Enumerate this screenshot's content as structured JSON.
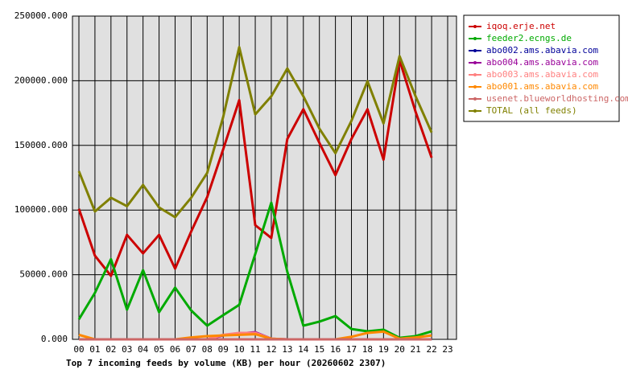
{
  "chart_data": {
    "type": "line",
    "title": "Top 7 incoming feeds by volume (KB) per hour (20260602 2307)",
    "categories": [
      "00",
      "01",
      "02",
      "03",
      "04",
      "05",
      "06",
      "07",
      "08",
      "09",
      "10",
      "11",
      "12",
      "13",
      "14",
      "15",
      "16",
      "17",
      "18",
      "19",
      "20",
      "21",
      "22",
      "23"
    ],
    "ylim": [
      0,
      250000
    ],
    "yticks": [
      {
        "value": 0,
        "label": "0.000"
      },
      {
        "value": 50000,
        "label": "50000.000"
      },
      {
        "value": 100000,
        "label": "100000.000"
      },
      {
        "value": 150000,
        "label": "150000.000"
      },
      {
        "value": 200000,
        "label": "200000.000"
      },
      {
        "value": 250000,
        "label": "250000.000"
      }
    ],
    "grid": true,
    "legend": "right",
    "series": [
      {
        "name": "iqoq.erje.net",
        "color": "#cc0000",
        "values": [
          101000,
          64700,
          49100,
          80800,
          66500,
          80800,
          54700,
          83300,
          110000,
          147000,
          185000,
          88300,
          78400,
          155000,
          178000,
          152000,
          127000,
          155000,
          178000,
          139000,
          216000,
          176000,
          140500,
          null
        ]
      },
      {
        "name": "feeder2.ecngs.de",
        "color": "#00aa00",
        "values": [
          15500,
          36000,
          62000,
          23000,
          53500,
          21000,
          40000,
          22400,
          10600,
          18700,
          26700,
          66000,
          105700,
          52200,
          10600,
          13700,
          18000,
          8000,
          6200,
          7500,
          1200,
          2500,
          6200,
          null
        ]
      },
      {
        "name": "abo002.ams.abavia.com",
        "color": "#000099",
        "values": [
          0,
          0,
          0,
          0,
          0,
          0,
          0,
          0,
          0,
          0,
          0,
          0,
          0,
          0,
          0,
          0,
          0,
          0,
          0,
          0,
          0,
          0,
          0,
          null
        ]
      },
      {
        "name": "abo004.ams.abavia.com",
        "color": "#990099",
        "values": [
          0,
          0,
          0,
          0,
          0,
          0,
          0,
          0,
          0,
          3000,
          4500,
          5500,
          500,
          0,
          0,
          0,
          0,
          0,
          0,
          0,
          0,
          0,
          0,
          null
        ]
      },
      {
        "name": "abo003.ams.abavia.com",
        "color": "#ff8080",
        "values": [
          0,
          0,
          0,
          0,
          0,
          0,
          0,
          0,
          0,
          3500,
          5000,
          5000,
          500,
          0,
          0,
          0,
          0,
          0,
          0,
          0,
          0,
          0,
          0,
          null
        ]
      },
      {
        "name": "abo001.ams.abavia.com",
        "color": "#ff8800",
        "values": [
          3500,
          0,
          0,
          0,
          0,
          0,
          0,
          1500,
          2500,
          3000,
          3500,
          4000,
          500,
          0,
          0,
          0,
          0,
          2000,
          5000,
          6000,
          500,
          1500,
          3000,
          null
        ]
      },
      {
        "name": "usenet.blueworldhosting.com",
        "color": "#cc6666",
        "values": [
          0,
          0,
          0,
          0,
          0,
          0,
          0,
          0,
          0,
          0,
          0,
          0,
          0,
          0,
          0,
          0,
          0,
          0,
          0,
          0,
          0,
          0,
          0,
          null
        ]
      },
      {
        "name": "TOTAL (all feeds)",
        "color": "#808000",
        "values": [
          130000,
          98900,
          109500,
          103000,
          119400,
          102000,
          94500,
          109500,
          128700,
          172000,
          226000,
          174000,
          188000,
          209500,
          188000,
          163000,
          144000,
          169000,
          199600,
          167000,
          219000,
          188000,
          160000,
          null
        ]
      }
    ]
  }
}
